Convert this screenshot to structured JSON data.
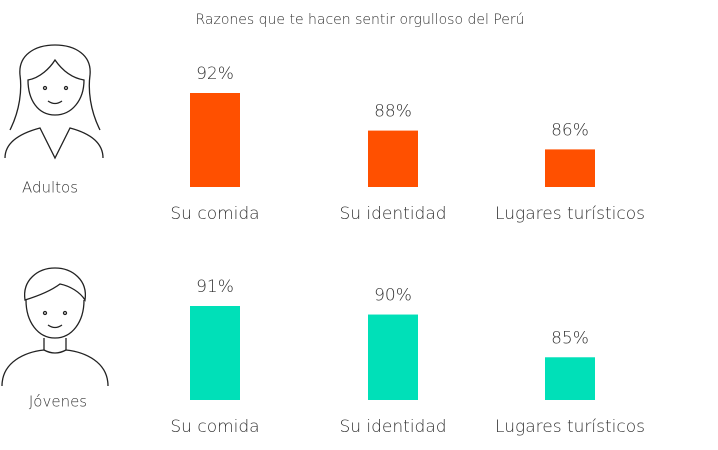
{
  "title": "Razones que te hacen sentir orgulloso del Perú",
  "chart_data": [
    {
      "type": "bar",
      "label": "Adultos",
      "categories": [
        "Su comida",
        "Su identidad",
        "Lugares turísticos"
      ],
      "values": [
        92,
        88,
        86
      ],
      "value_labels": [
        "92%",
        "88%",
        "86%"
      ],
      "color": "#ff5000",
      "ylim": [
        82,
        92
      ]
    },
    {
      "type": "bar",
      "label": "Jóvenes",
      "categories": [
        "Su comida",
        "Su identidad",
        "Lugares turísticos"
      ],
      "values": [
        91,
        90,
        85
      ],
      "value_labels": [
        "91%",
        "90%",
        "85%"
      ],
      "color": "#00e0b8",
      "ylim": [
        80,
        91
      ]
    }
  ]
}
